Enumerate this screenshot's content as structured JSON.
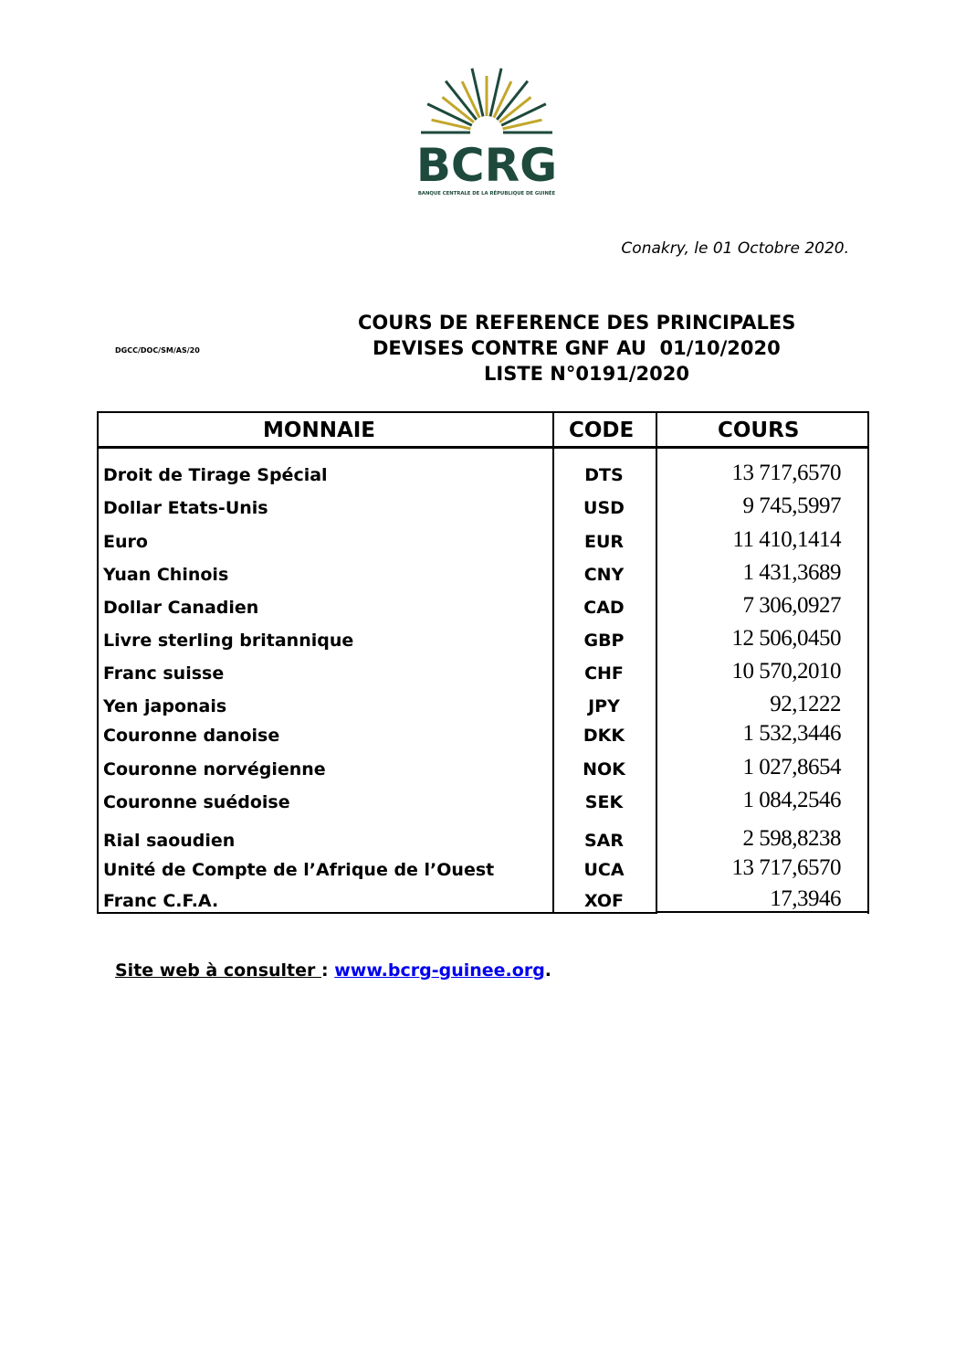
{
  "logo": {
    "name": "BCRG",
    "subtitle": "BANQUE CENTRALE DE LA RÉPUBLIQUE DE GUINÉE",
    "colors": {
      "green": "#1d4a3c",
      "gold": "#c2a72b"
    }
  },
  "date_line": "Conakry, le 01 Octobre 2020.",
  "reference": "DGCC/DOC/SM/AS/20",
  "title": {
    "line1": "COURS DE REFERENCE DES PRINCIPALES",
    "line2": "DEVISES CONTRE GNF AU  01/10/2020",
    "line3": "LISTE N°0191/2020"
  },
  "table": {
    "headers": [
      "MONNAIE",
      "CODE",
      "COURS"
    ],
    "rows": [
      {
        "name": "Droit de Tirage Spécial",
        "code": "DTS",
        "rate": "13 717,6570"
      },
      {
        "name": "Dollar Etats-Unis",
        "code": "USD",
        "rate": "9 745,5997"
      },
      {
        "name": "Euro",
        "code": "EUR",
        "rate": "11 410,1414"
      },
      {
        "name": "Yuan Chinois",
        "code": "CNY",
        "rate": "1 431,3689"
      },
      {
        "name": "Dollar Canadien",
        "code": "CAD",
        "rate": "7 306,0927"
      },
      {
        "name": "Livre sterling britannique",
        "code": "GBP",
        "rate": "12 506,0450"
      },
      {
        "name": "Franc suisse",
        "code": "CHF",
        "rate": "10 570,2010"
      },
      {
        "name": "Yen japonais",
        "code": "JPY",
        "rate": "92,1222"
      },
      {
        "name": "Couronne danoise",
        "code": "DKK",
        "rate": "1 532,3446"
      },
      {
        "name": "Couronne norvégienne",
        "code": "NOK",
        "rate": "1 027,8654"
      },
      {
        "name": "Couronne suédoise",
        "code": "SEK",
        "rate": "1 084,2546"
      },
      {
        "name": "Rial saoudien",
        "code": "SAR",
        "rate": "2 598,8238"
      },
      {
        "name": "Unité de Compte de l’Afrique de l’Ouest",
        "code": "UCA",
        "rate": "13 717,6570"
      },
      {
        "name": "Franc C.F.A.",
        "code": "XOF",
        "rate": "17,3946"
      }
    ]
  },
  "footer": {
    "label": "Site web à consulter ",
    "sep": ": ",
    "link": "www.bcrg-guinee.org",
    "end": "."
  }
}
